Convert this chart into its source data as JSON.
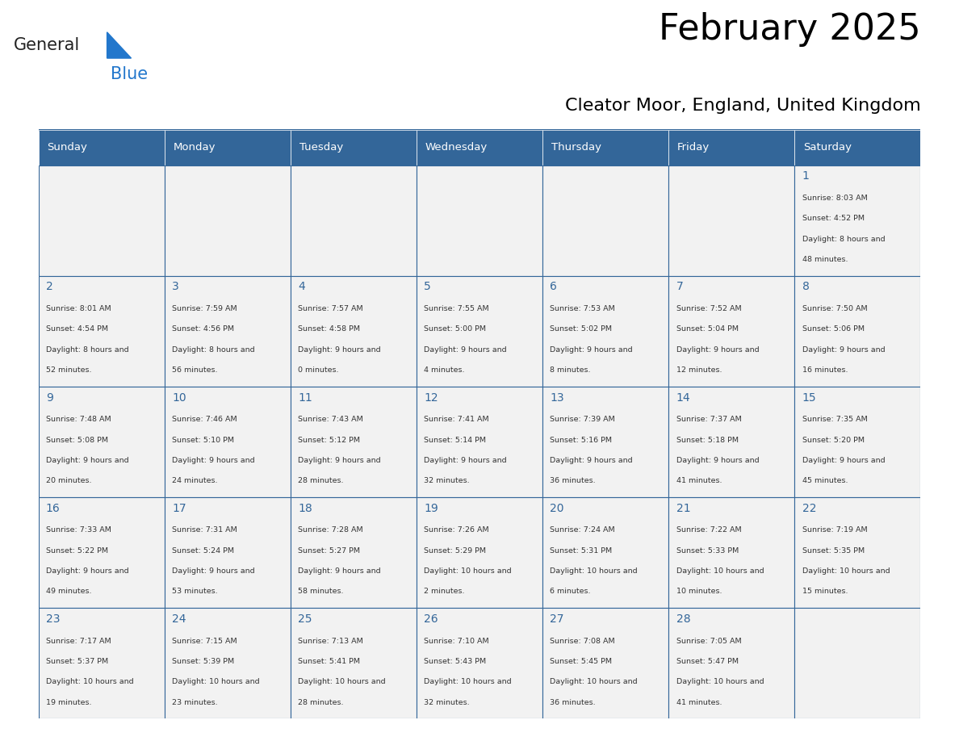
{
  "title": "February 2025",
  "subtitle": "Cleator Moor, England, United Kingdom",
  "days_of_week": [
    "Sunday",
    "Monday",
    "Tuesday",
    "Wednesday",
    "Thursday",
    "Friday",
    "Saturday"
  ],
  "header_bg": "#336699",
  "header_text": "#ffffff",
  "cell_bg_light": "#f2f2f2",
  "cell_bg_white": "#ffffff",
  "border_color": "#336699",
  "day_number_color": "#336699",
  "text_color": "#333333",
  "logo_general_color": "#222222",
  "logo_blue_color": "#2277cc",
  "calendar_data": [
    [
      null,
      null,
      null,
      null,
      null,
      null,
      1
    ],
    [
      2,
      3,
      4,
      5,
      6,
      7,
      8
    ],
    [
      9,
      10,
      11,
      12,
      13,
      14,
      15
    ],
    [
      16,
      17,
      18,
      19,
      20,
      21,
      22
    ],
    [
      23,
      24,
      25,
      26,
      27,
      28,
      null
    ]
  ],
  "cell_info": {
    "1": {
      "sunrise": "8:03 AM",
      "sunset": "4:52 PM",
      "daylight": "8 hours and 48 minutes."
    },
    "2": {
      "sunrise": "8:01 AM",
      "sunset": "4:54 PM",
      "daylight": "8 hours and 52 minutes."
    },
    "3": {
      "sunrise": "7:59 AM",
      "sunset": "4:56 PM",
      "daylight": "8 hours and 56 minutes."
    },
    "4": {
      "sunrise": "7:57 AM",
      "sunset": "4:58 PM",
      "daylight": "9 hours and 0 minutes."
    },
    "5": {
      "sunrise": "7:55 AM",
      "sunset": "5:00 PM",
      "daylight": "9 hours and 4 minutes."
    },
    "6": {
      "sunrise": "7:53 AM",
      "sunset": "5:02 PM",
      "daylight": "9 hours and 8 minutes."
    },
    "7": {
      "sunrise": "7:52 AM",
      "sunset": "5:04 PM",
      "daylight": "9 hours and 12 minutes."
    },
    "8": {
      "sunrise": "7:50 AM",
      "sunset": "5:06 PM",
      "daylight": "9 hours and 16 minutes."
    },
    "9": {
      "sunrise": "7:48 AM",
      "sunset": "5:08 PM",
      "daylight": "9 hours and 20 minutes."
    },
    "10": {
      "sunrise": "7:46 AM",
      "sunset": "5:10 PM",
      "daylight": "9 hours and 24 minutes."
    },
    "11": {
      "sunrise": "7:43 AM",
      "sunset": "5:12 PM",
      "daylight": "9 hours and 28 minutes."
    },
    "12": {
      "sunrise": "7:41 AM",
      "sunset": "5:14 PM",
      "daylight": "9 hours and 32 minutes."
    },
    "13": {
      "sunrise": "7:39 AM",
      "sunset": "5:16 PM",
      "daylight": "9 hours and 36 minutes."
    },
    "14": {
      "sunrise": "7:37 AM",
      "sunset": "5:18 PM",
      "daylight": "9 hours and 41 minutes."
    },
    "15": {
      "sunrise": "7:35 AM",
      "sunset": "5:20 PM",
      "daylight": "9 hours and 45 minutes."
    },
    "16": {
      "sunrise": "7:33 AM",
      "sunset": "5:22 PM",
      "daylight": "9 hours and 49 minutes."
    },
    "17": {
      "sunrise": "7:31 AM",
      "sunset": "5:24 PM",
      "daylight": "9 hours and 53 minutes."
    },
    "18": {
      "sunrise": "7:28 AM",
      "sunset": "5:27 PM",
      "daylight": "9 hours and 58 minutes."
    },
    "19": {
      "sunrise": "7:26 AM",
      "sunset": "5:29 PM",
      "daylight": "10 hours and 2 minutes."
    },
    "20": {
      "sunrise": "7:24 AM",
      "sunset": "5:31 PM",
      "daylight": "10 hours and 6 minutes."
    },
    "21": {
      "sunrise": "7:22 AM",
      "sunset": "5:33 PM",
      "daylight": "10 hours and 10 minutes."
    },
    "22": {
      "sunrise": "7:19 AM",
      "sunset": "5:35 PM",
      "daylight": "10 hours and 15 minutes."
    },
    "23": {
      "sunrise": "7:17 AM",
      "sunset": "5:37 PM",
      "daylight": "10 hours and 19 minutes."
    },
    "24": {
      "sunrise": "7:15 AM",
      "sunset": "5:39 PM",
      "daylight": "10 hours and 23 minutes."
    },
    "25": {
      "sunrise": "7:13 AM",
      "sunset": "5:41 PM",
      "daylight": "10 hours and 28 minutes."
    },
    "26": {
      "sunrise": "7:10 AM",
      "sunset": "5:43 PM",
      "daylight": "10 hours and 32 minutes."
    },
    "27": {
      "sunrise": "7:08 AM",
      "sunset": "5:45 PM",
      "daylight": "10 hours and 36 minutes."
    },
    "28": {
      "sunrise": "7:05 AM",
      "sunset": "5:47 PM",
      "daylight": "10 hours and 41 minutes."
    }
  }
}
